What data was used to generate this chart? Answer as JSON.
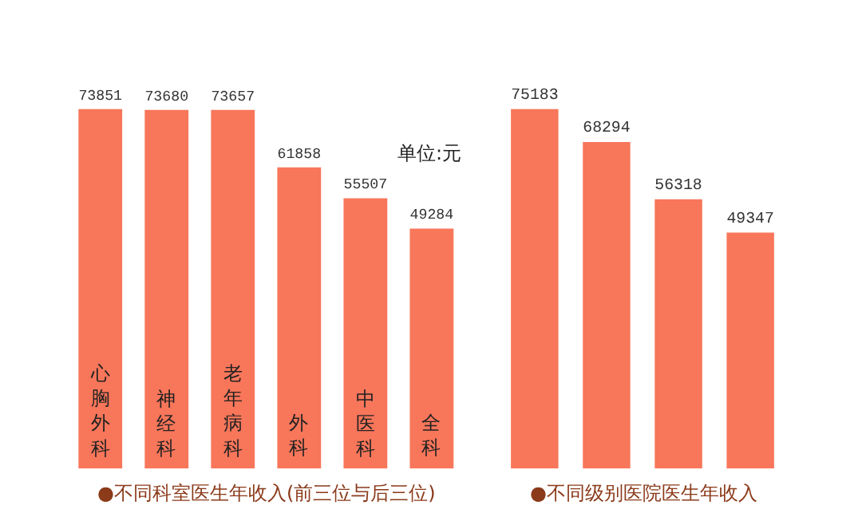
{
  "chart_data": [
    {
      "type": "bar",
      "title": "●不同科室医生年收入(前三位与后三位)",
      "categories": [
        "心胸外科",
        "神经科",
        "老年病科",
        "外科",
        "中医科",
        "全科"
      ],
      "values": [
        73851,
        73680,
        73657,
        61858,
        55507,
        49284
      ],
      "color": "#f8765a",
      "data_labels": true,
      "annotations": [
        "单位:元"
      ]
    },
    {
      "type": "bar",
      "title": "●不同级别医院医生年收入",
      "categories": [
        null,
        null,
        null,
        null
      ],
      "values": [
        75183,
        68294,
        56318,
        49347
      ],
      "color": "#f8765a",
      "data_labels": true
    }
  ]
}
